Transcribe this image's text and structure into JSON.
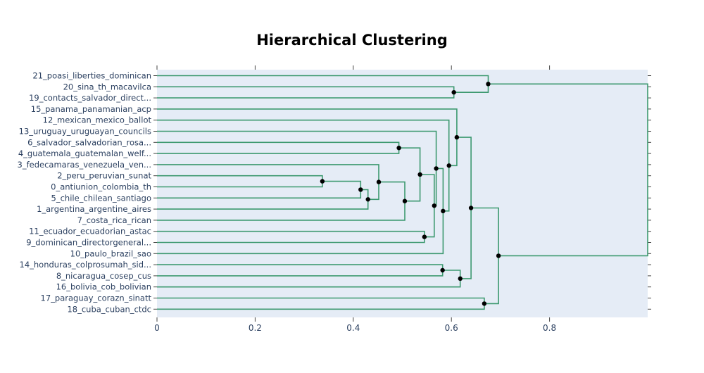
{
  "chart_data": {
    "type": "dendrogram",
    "title": "Hierarchical Clustering",
    "xlabel": "",
    "ylabel": "",
    "xlim": [
      0,
      1.0
    ],
    "x_ticks": [
      0,
      0.2,
      0.4,
      0.6,
      0.8
    ],
    "x_tick_labels": [
      "0",
      "0.2",
      "0.4",
      "0.6",
      "0.8"
    ],
    "leaves": [
      "21_poasi_liberties_dominican",
      "20_sina_th_macavilca",
      "19_contacts_salvador_direct...",
      "15_panama_panamanian_acp",
      "12_mexican_mexico_ballot",
      "13_uruguay_uruguayan_councils",
      "6_salvador_salvadorian_rosa...",
      "4_guatemala_guatemalan_welf...",
      "3_fedecamaras_venezuela_ven...",
      "2_peru_peruvian_sunat",
      "0_antiunion_colombia_th",
      "5_chile_chilean_santiago",
      "1_argentina_argentine_aires",
      "7_costa_rica_rican",
      "11_ecuador_ecuadorian_astac",
      "9_dominican_directorgeneral...",
      "10_paulo_brazil_sao",
      "14_honduras_colprosumah_sid...",
      "8_nicaragua_cosep_cus",
      "16_bolivia_cob_bolivian",
      "17_paraguay_corazn_sinatt",
      "18_cuba_cuban_ctdc"
    ],
    "merges": [
      {
        "id": "A",
        "left": "L9",
        "right": "L10",
        "height": 0.337
      },
      {
        "id": "B",
        "left": "A",
        "right": "L11",
        "height": 0.415
      },
      {
        "id": "C",
        "left": "B",
        "right": "L12",
        "height": 0.43
      },
      {
        "id": "D",
        "left": "L8",
        "right": "C",
        "height": 0.452
      },
      {
        "id": "E",
        "left": "L6",
        "right": "L7",
        "height": 0.493
      },
      {
        "id": "F",
        "left": "D",
        "right": "L13",
        "height": 0.505
      },
      {
        "id": "G",
        "left": "E",
        "right": "F",
        "height": 0.536
      },
      {
        "id": "H",
        "left": "L14",
        "right": "L15",
        "height": 0.545
      },
      {
        "id": "I",
        "left": "G",
        "right": "H",
        "height": 0.565
      },
      {
        "id": "J",
        "left": "L5",
        "right": "I",
        "height": 0.569
      },
      {
        "id": "K",
        "left": "J",
        "right": "L16",
        "height": 0.583
      },
      {
        "id": "L",
        "left": "L4",
        "right": "K",
        "height": 0.595
      },
      {
        "id": "M",
        "left": "L3",
        "right": "L",
        "height": 0.611
      },
      {
        "id": "N",
        "left": "L17",
        "right": "L18",
        "height": 0.582
      },
      {
        "id": "O",
        "left": "N",
        "right": "L19",
        "height": 0.618
      },
      {
        "id": "P",
        "left": "M",
        "right": "O",
        "height": 0.64
      },
      {
        "id": "Q",
        "left": "L1",
        "right": "L2",
        "height": 0.605
      },
      {
        "id": "R",
        "left": "L0",
        "right": "Q",
        "height": 0.675
      },
      {
        "id": "S",
        "left": "L20",
        "right": "L21",
        "height": 0.667
      },
      {
        "id": "T",
        "left": "P",
        "right": "S",
        "height": 0.696
      },
      {
        "id": "U",
        "left": "R",
        "right": "T",
        "height": 1.0
      }
    ],
    "line_color": "#3d9970",
    "marker_color": "#000000",
    "plot_bg": "#e5ecf6"
  }
}
